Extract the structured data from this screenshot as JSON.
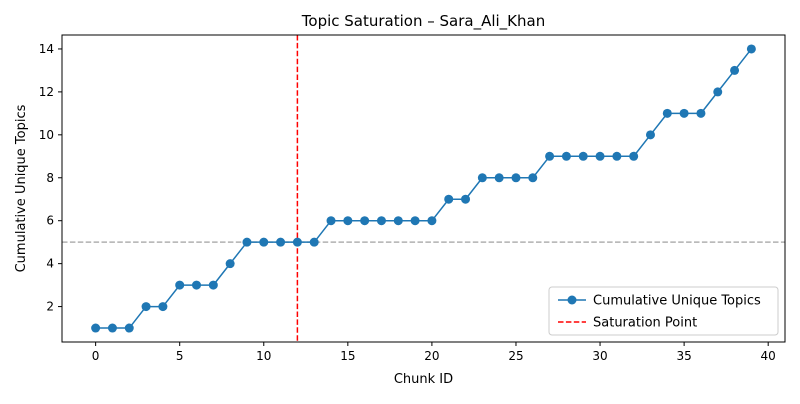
{
  "chart_data": {
    "type": "line",
    "title": "Topic Saturation – Sara_Ali_Khan",
    "xlabel": "Chunk ID",
    "ylabel": "Cumulative Unique Topics",
    "xlim": [
      -2,
      41
    ],
    "ylim": [
      0.35,
      14.65
    ],
    "xticks": [
      0,
      5,
      10,
      15,
      20,
      25,
      30,
      35,
      40
    ],
    "yticks": [
      2,
      4,
      6,
      8,
      10,
      12,
      14
    ],
    "grid": false,
    "legend_position": "lower-right",
    "series": [
      {
        "name": "Cumulative Unique Topics",
        "color": "#1f77b4",
        "marker": "circle",
        "x": [
          0,
          1,
          2,
          3,
          4,
          5,
          6,
          7,
          8,
          9,
          10,
          11,
          12,
          13,
          14,
          15,
          16,
          17,
          18,
          19,
          20,
          21,
          22,
          23,
          24,
          25,
          26,
          27,
          28,
          29,
          30,
          31,
          32,
          33,
          34,
          35,
          36,
          37,
          38,
          39
        ],
        "y": [
          1,
          1,
          1,
          2,
          2,
          3,
          3,
          3,
          4,
          5,
          5,
          5,
          5,
          5,
          6,
          6,
          6,
          6,
          6,
          6,
          6,
          7,
          7,
          8,
          8,
          8,
          8,
          9,
          9,
          9,
          9,
          9,
          9,
          10,
          11,
          11,
          11,
          12,
          13,
          14
        ]
      }
    ],
    "reference_lines": [
      {
        "name": "Saturation Point",
        "orientation": "vertical",
        "value": 12,
        "color": "#ff0000",
        "style": "dashed",
        "in_legend": true
      },
      {
        "orientation": "horizontal",
        "value": 5,
        "color": "#b0b0b0",
        "style": "dashed",
        "in_legend": false
      }
    ]
  }
}
